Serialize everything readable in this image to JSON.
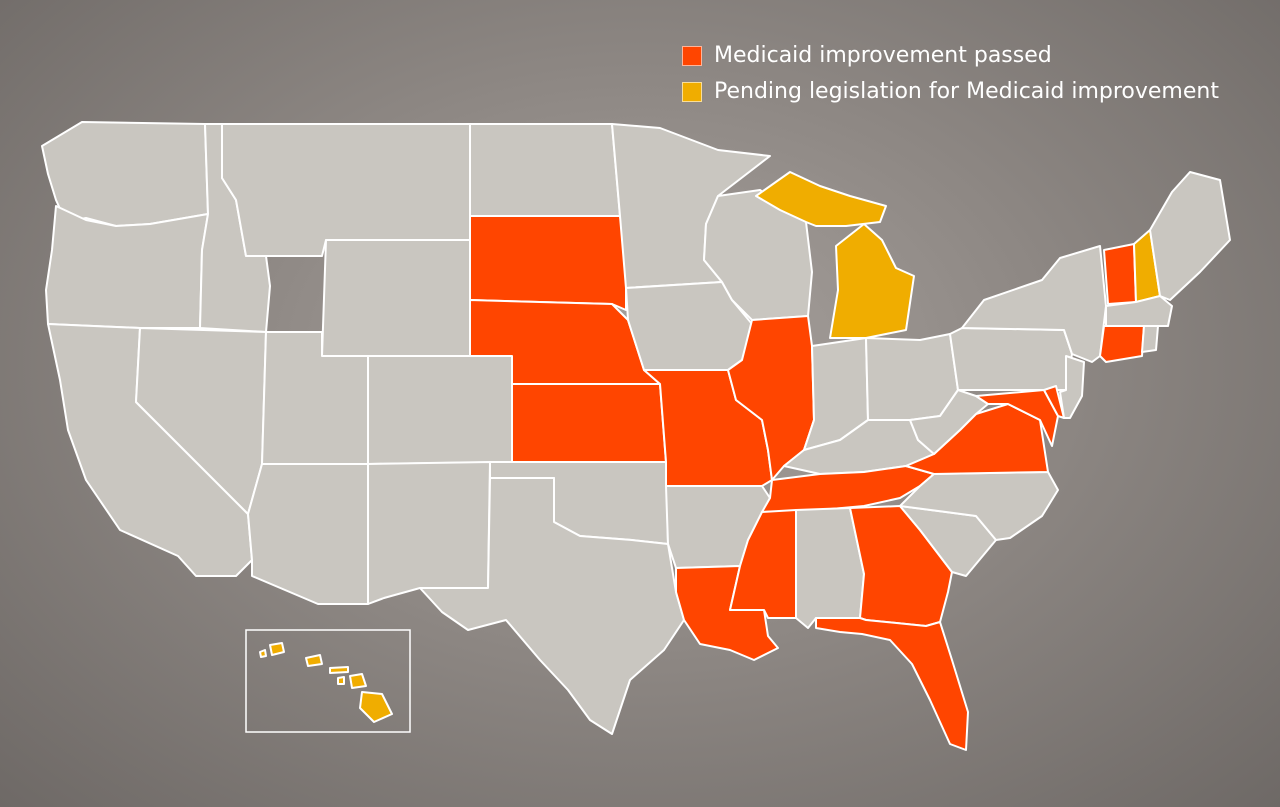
{
  "legend": {
    "passed": {
      "label": "Medicaid improvement passed",
      "color": "#ff4500"
    },
    "pending": {
      "label": "Pending legislation for Medicaid improvement",
      "color": "#f0ad00"
    }
  },
  "colors": {
    "default": "#c9c6c0",
    "background": "#8e8884",
    "border": "#ffffff"
  },
  "states": {
    "passed": [
      "South Dakota",
      "Nebraska",
      "Kansas",
      "Missouri",
      "Illinois",
      "Tennessee",
      "Virginia",
      "Maryland",
      "Delaware",
      "Louisiana",
      "Mississippi",
      "Georgia",
      "Florida",
      "Vermont",
      "Connecticut"
    ],
    "pending": [
      "Michigan",
      "New Hampshire",
      "Hawaii"
    ]
  }
}
